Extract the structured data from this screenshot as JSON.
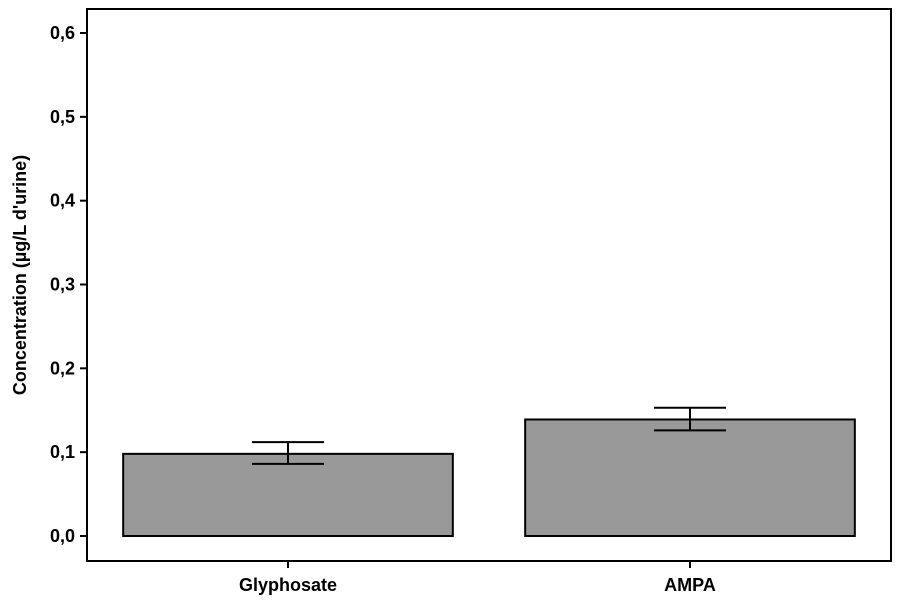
{
  "chart_data": {
    "type": "bar",
    "title": "",
    "xlabel": "",
    "ylabel": "Concentration (µg/L d'urine)",
    "categories": [
      "Glyphosate",
      "AMPA"
    ],
    "values": [
      0.098,
      0.139
    ],
    "error_low": [
      0.086,
      0.126
    ],
    "error_high": [
      0.112,
      0.153
    ],
    "ylim": [
      0,
      0.6
    ],
    "yticks": [
      0.0,
      0.1,
      0.2,
      0.3,
      0.4,
      0.5,
      0.6
    ],
    "ytick_labels": [
      "0,0",
      "0,1",
      "0,2",
      "0,3",
      "0,4",
      "0,5",
      "0,6"
    ],
    "grid": false,
    "bar_color": "#999999"
  }
}
